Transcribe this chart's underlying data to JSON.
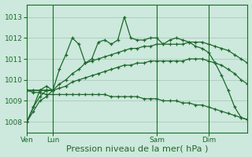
{
  "background_color": "#cde8dc",
  "grid_color": "#aaccbb",
  "line_color": "#1a6b2a",
  "xlabel": "Pression niveau de la mer( hPa )",
  "xlabel_fontsize": 8,
  "ylim": [
    1007.5,
    1013.6
  ],
  "yticks": [
    1008,
    1009,
    1010,
    1011,
    1012,
    1013
  ],
  "xtick_labels": [
    "Ven",
    "Lun",
    "Sam",
    "Dim"
  ],
  "xtick_positions": [
    0,
    8,
    40,
    56
  ],
  "total_points": 72,
  "vline_positions": [
    8,
    40,
    56
  ],
  "line_jagged_x": [
    0,
    2,
    4,
    6,
    8,
    10,
    12,
    14,
    16,
    18,
    20,
    22,
    24,
    26,
    28,
    30,
    32,
    34,
    36,
    38,
    40,
    42,
    44,
    46,
    48,
    50,
    52,
    54,
    56,
    58,
    60,
    62,
    64,
    66,
    68
  ],
  "line_jagged_y": [
    1008.0,
    1008.7,
    1009.5,
    1009.7,
    1009.5,
    1010.5,
    1011.2,
    1012.0,
    1011.7,
    1010.8,
    1011.0,
    1011.8,
    1011.9,
    1011.7,
    1011.9,
    1013.0,
    1012.0,
    1011.9,
    1011.9,
    1012.0,
    1012.0,
    1011.7,
    1011.9,
    1012.0,
    1011.9,
    1011.8,
    1011.6,
    1011.5,
    1011.3,
    1010.8,
    1010.2,
    1009.5,
    1008.7,
    1008.2,
    1008.1
  ],
  "line_upper_x": [
    0,
    2,
    4,
    6,
    8,
    10,
    12,
    14,
    16,
    18,
    20,
    22,
    24,
    26,
    28,
    30,
    32,
    34,
    36,
    38,
    40,
    42,
    44,
    46,
    48,
    50,
    52,
    54,
    56,
    58,
    60,
    62,
    64,
    66,
    68
  ],
  "line_upper_y": [
    1009.5,
    1009.5,
    1009.5,
    1009.5,
    1009.5,
    1009.8,
    1010.0,
    1010.3,
    1010.5,
    1010.8,
    1010.9,
    1011.0,
    1011.1,
    1011.2,
    1011.3,
    1011.4,
    1011.5,
    1011.5,
    1011.6,
    1011.6,
    1011.7,
    1011.7,
    1011.7,
    1011.7,
    1011.7,
    1011.8,
    1011.8,
    1011.8,
    1011.7,
    1011.6,
    1011.5,
    1011.4,
    1011.2,
    1011.0,
    1010.8
  ],
  "line_mid_x": [
    0,
    2,
    4,
    6,
    8,
    10,
    12,
    14,
    16,
    18,
    20,
    22,
    24,
    26,
    28,
    30,
    32,
    34,
    36,
    38,
    40,
    42,
    44,
    46,
    48,
    50,
    52,
    54,
    56,
    58,
    60,
    62,
    64,
    66,
    68
  ],
  "line_mid_y": [
    1009.5,
    1009.5,
    1009.5,
    1009.5,
    1009.5,
    1009.6,
    1009.7,
    1009.9,
    1010.0,
    1010.1,
    1010.2,
    1010.3,
    1010.4,
    1010.5,
    1010.6,
    1010.7,
    1010.7,
    1010.8,
    1010.8,
    1010.9,
    1010.9,
    1010.9,
    1010.9,
    1010.9,
    1010.9,
    1011.0,
    1011.0,
    1011.0,
    1010.9,
    1010.8,
    1010.7,
    1010.5,
    1010.3,
    1010.0,
    1009.8
  ],
  "line_lower_x": [
    0,
    2,
    4,
    6,
    8,
    10,
    12,
    14,
    16,
    18,
    20,
    22,
    24,
    26,
    28,
    30,
    32,
    34,
    36,
    38,
    40,
    42,
    44,
    46,
    48,
    50,
    52,
    54,
    56,
    58,
    60,
    62,
    64,
    66,
    68
  ],
  "line_lower_y": [
    1009.5,
    1009.4,
    1009.4,
    1009.3,
    1009.3,
    1009.3,
    1009.3,
    1009.3,
    1009.3,
    1009.3,
    1009.3,
    1009.3,
    1009.3,
    1009.2,
    1009.2,
    1009.2,
    1009.2,
    1009.2,
    1009.1,
    1009.1,
    1009.1,
    1009.0,
    1009.0,
    1009.0,
    1008.9,
    1008.9,
    1008.8,
    1008.8,
    1008.7,
    1008.6,
    1008.5,
    1008.4,
    1008.3,
    1008.2,
    1008.1
  ],
  "line_start_x": [
    0,
    2,
    4,
    6,
    8
  ],
  "line_start_y": [
    1008.0,
    1008.7,
    1009.2,
    1009.5,
    1009.5
  ],
  "line_start2_x": [
    0,
    2,
    4,
    6,
    8
  ],
  "line_start2_y": [
    1008.0,
    1008.5,
    1009.0,
    1009.2,
    1009.5
  ]
}
